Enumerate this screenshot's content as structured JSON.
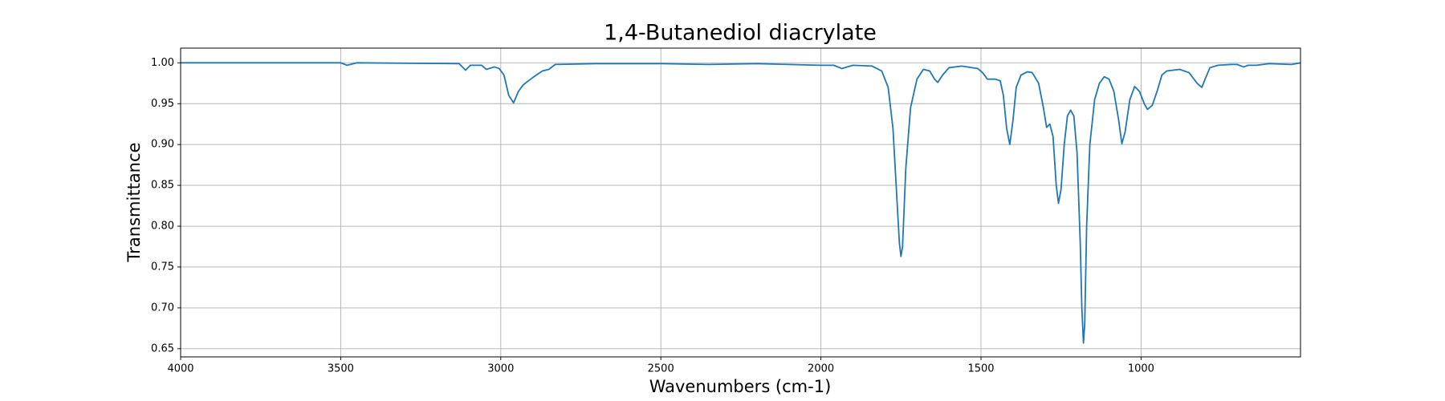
{
  "chart_data": {
    "type": "line",
    "title": "1,4-Butanediol diacrylate",
    "x_label": "Wavenumbers (cm-1)",
    "y_label": "Transmittance",
    "x": [
      4000,
      3500,
      3480,
      3450,
      3130,
      3110,
      3095,
      3060,
      3045,
      3020,
      3005,
      2990,
      2975,
      2960,
      2945,
      2930,
      2900,
      2870,
      2850,
      2830,
      2700,
      2500,
      2350,
      2200,
      2000,
      1960,
      1935,
      1900,
      1840,
      1810,
      1790,
      1775,
      1765,
      1755,
      1750,
      1745,
      1735,
      1720,
      1700,
      1680,
      1660,
      1645,
      1635,
      1620,
      1600,
      1560,
      1510,
      1495,
      1480,
      1455,
      1440,
      1430,
      1420,
      1410,
      1400,
      1390,
      1375,
      1355,
      1340,
      1320,
      1305,
      1295,
      1285,
      1275,
      1265,
      1258,
      1250,
      1240,
      1230,
      1220,
      1210,
      1200,
      1190,
      1185,
      1180,
      1176,
      1170,
      1160,
      1145,
      1130,
      1115,
      1100,
      1085,
      1070,
      1060,
      1050,
      1035,
      1020,
      1005,
      990,
      980,
      965,
      950,
      935,
      920,
      880,
      850,
      825,
      810,
      800,
      785,
      760,
      720,
      700,
      680,
      665,
      640,
      600,
      530,
      502
    ],
    "series": [
      {
        "name": "Transmittance",
        "color": "#1f77b4",
        "values": [
          1.0,
          1.0,
          0.997,
          1.0,
          0.999,
          0.991,
          0.997,
          0.997,
          0.992,
          0.995,
          0.993,
          0.985,
          0.96,
          0.951,
          0.965,
          0.973,
          0.982,
          0.99,
          0.992,
          0.998,
          0.999,
          0.999,
          0.998,
          0.999,
          0.997,
          0.997,
          0.993,
          0.997,
          0.996,
          0.99,
          0.97,
          0.92,
          0.85,
          0.78,
          0.763,
          0.775,
          0.87,
          0.945,
          0.98,
          0.992,
          0.99,
          0.98,
          0.976,
          0.985,
          0.994,
          0.996,
          0.993,
          0.988,
          0.98,
          0.98,
          0.978,
          0.96,
          0.92,
          0.9,
          0.93,
          0.97,
          0.985,
          0.989,
          0.988,
          0.975,
          0.945,
          0.921,
          0.925,
          0.91,
          0.85,
          0.828,
          0.845,
          0.9,
          0.935,
          0.942,
          0.935,
          0.89,
          0.78,
          0.7,
          0.657,
          0.68,
          0.8,
          0.9,
          0.955,
          0.975,
          0.983,
          0.98,
          0.965,
          0.93,
          0.901,
          0.915,
          0.955,
          0.971,
          0.965,
          0.95,
          0.943,
          0.948,
          0.965,
          0.985,
          0.99,
          0.992,
          0.988,
          0.975,
          0.97,
          0.98,
          0.994,
          0.997,
          0.998,
          0.998,
          0.995,
          0.997,
          0.997,
          0.999,
          0.998,
          1.0
        ]
      }
    ],
    "xlim": [
      4000,
      502
    ],
    "ylim": [
      0.64,
      1.018
    ],
    "xticks": [
      4000,
      3500,
      3000,
      2500,
      2000,
      1500,
      1000
    ],
    "yticks": [
      0.65,
      {
        "value": 0.7,
        "label": "0.70"
      },
      0.75,
      {
        "value": 0.8,
        "label": "0.80"
      },
      0.85,
      {
        "value": 0.9,
        "label": "0.90"
      },
      0.95,
      {
        "value": 1,
        "label": "1.00"
      }
    ],
    "grid": true
  }
}
